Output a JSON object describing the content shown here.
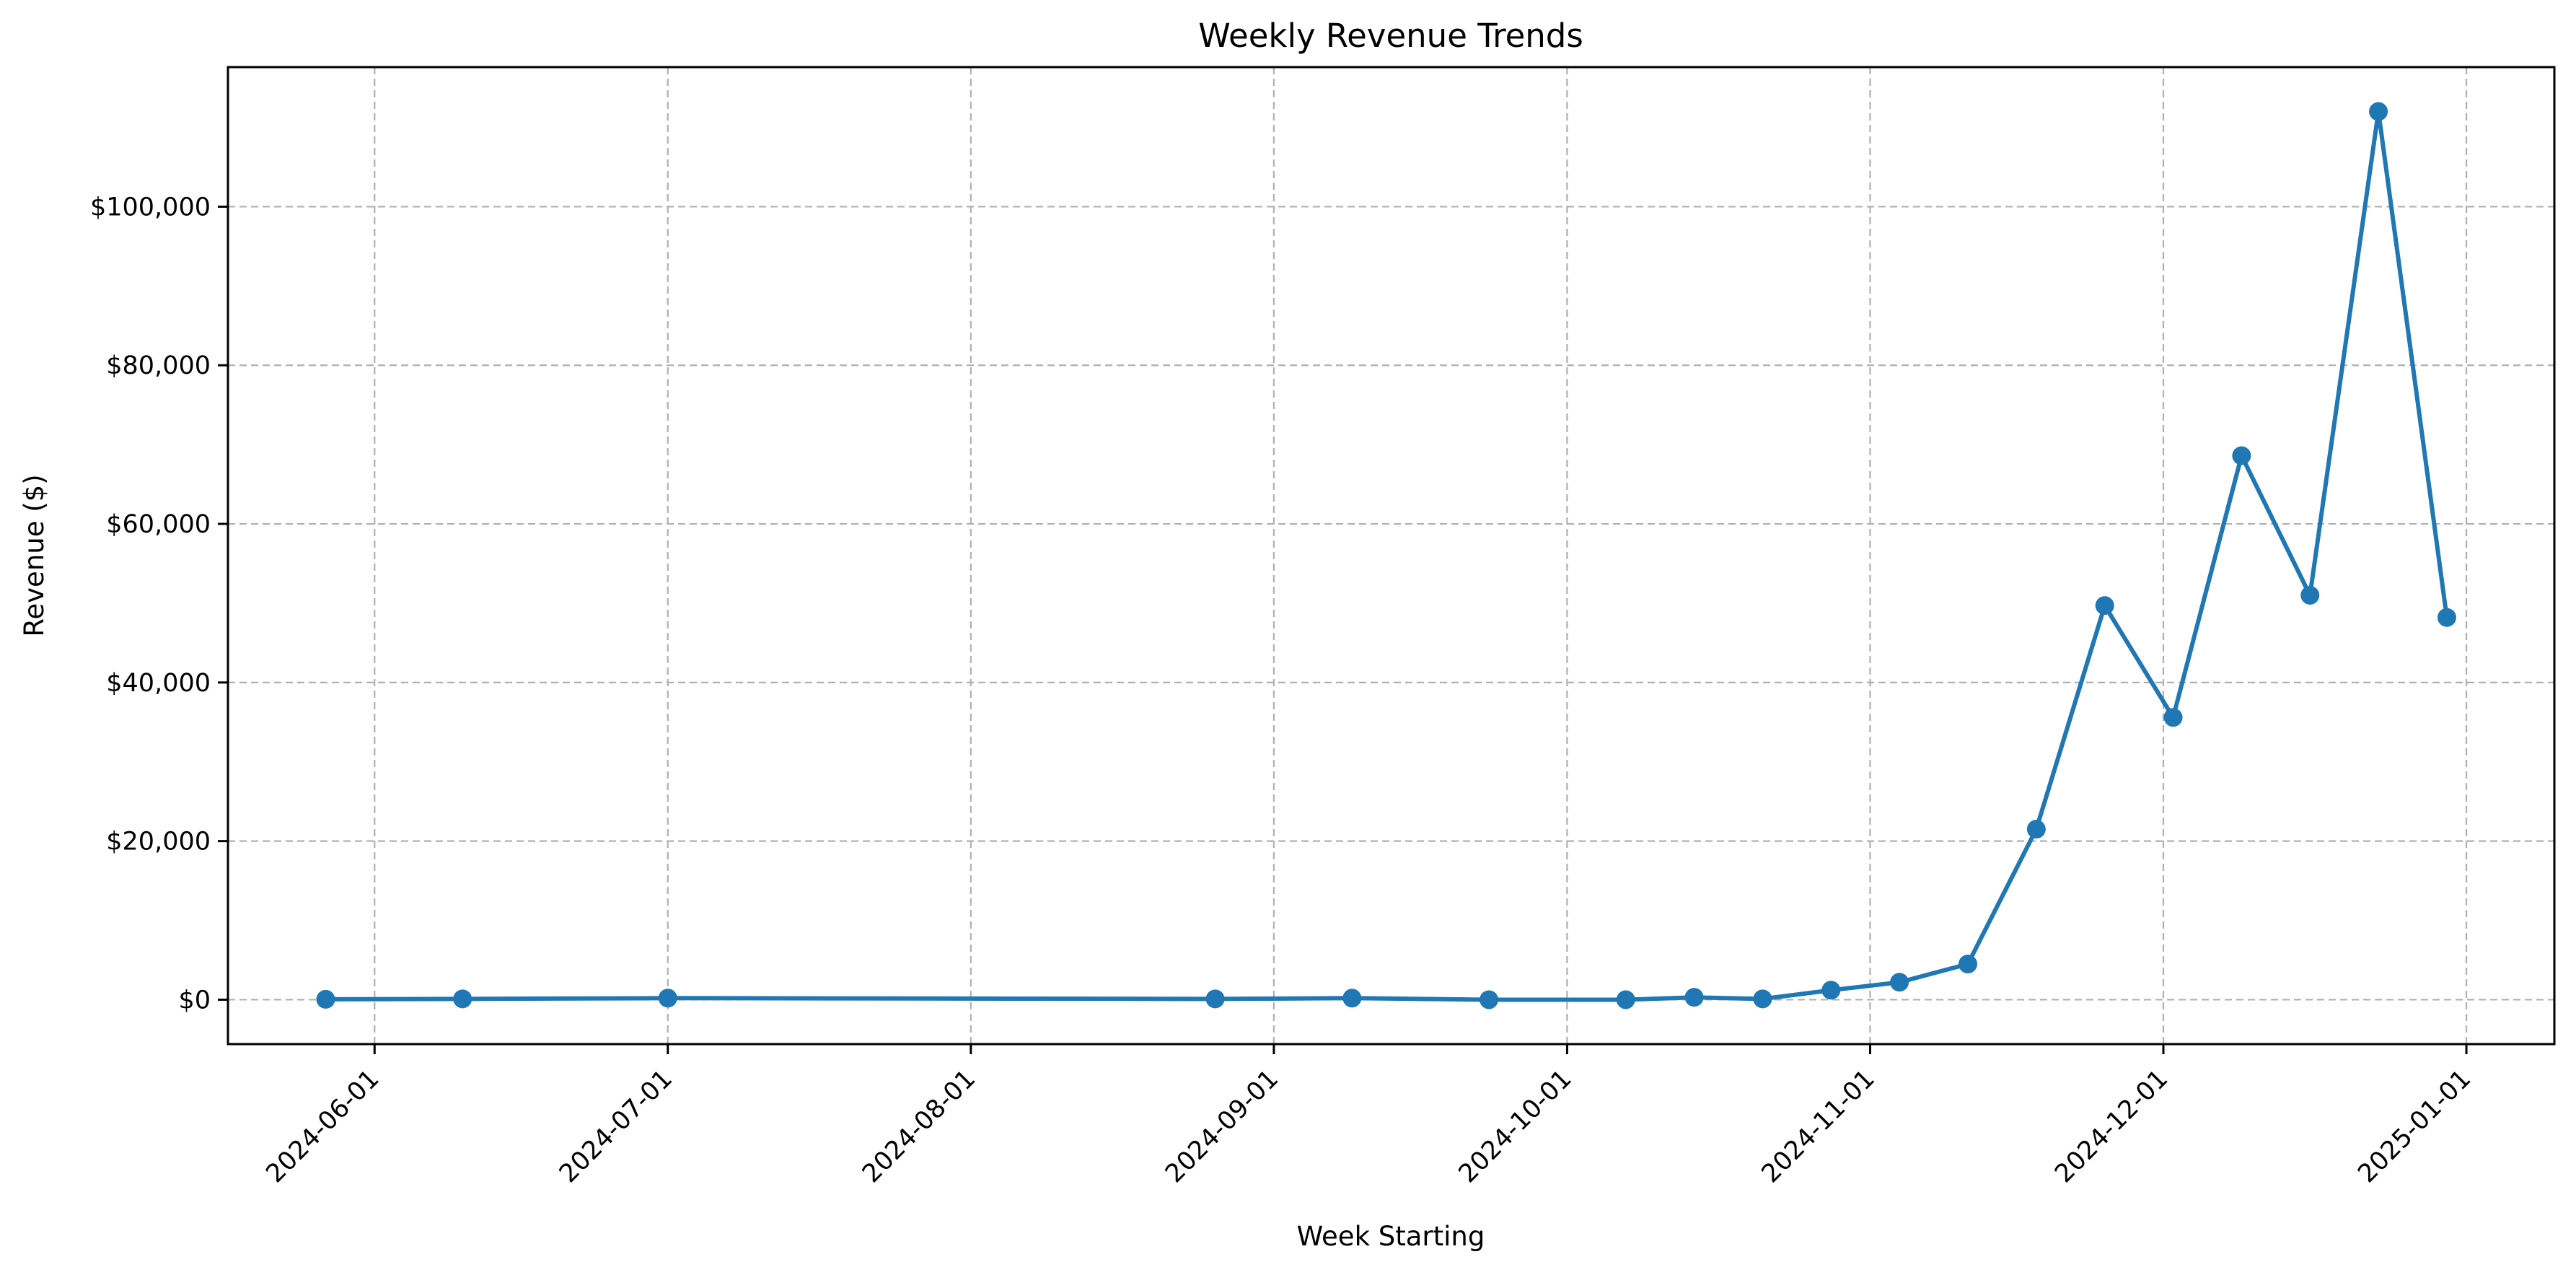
{
  "chart_data": {
    "type": "line",
    "title": "Weekly Revenue Trends",
    "xlabel": "Week Starting",
    "ylabel": "Revenue ($)",
    "x_ticks": [
      "2024-06-01",
      "2024-07-01",
      "2024-08-01",
      "2024-09-01",
      "2024-10-01",
      "2024-11-01",
      "2024-12-01",
      "2025-01-01"
    ],
    "y_ticks": [
      0,
      20000,
      40000,
      60000,
      80000,
      100000
    ],
    "y_tick_labels": [
      "$0",
      "$20,000",
      "$40,000",
      "$60,000",
      "$80,000",
      "$100,000"
    ],
    "xlim": [
      "2024-05-17",
      "2025-01-10"
    ],
    "ylim": [
      -5600,
      117600
    ],
    "grid": true,
    "grid_style": "dashed",
    "line_color": "#1f77b4",
    "series": [
      {
        "x": [
          "2024-05-27",
          "2024-06-10",
          "2024-07-01",
          "2024-08-26",
          "2024-09-09",
          "2024-09-23",
          "2024-10-07",
          "2024-10-14",
          "2024-10-21",
          "2024-10-28",
          "2024-11-04",
          "2024-11-11",
          "2024-11-18",
          "2024-11-25",
          "2024-12-02",
          "2024-12-09",
          "2024-12-16",
          "2024-12-23",
          "2024-12-30"
        ],
        "values": [
          50,
          100,
          200,
          100,
          200,
          0,
          0,
          300,
          100,
          1200,
          2200,
          4500,
          21500,
          49700,
          35600,
          68600,
          51000,
          112000,
          48200
        ]
      }
    ]
  }
}
